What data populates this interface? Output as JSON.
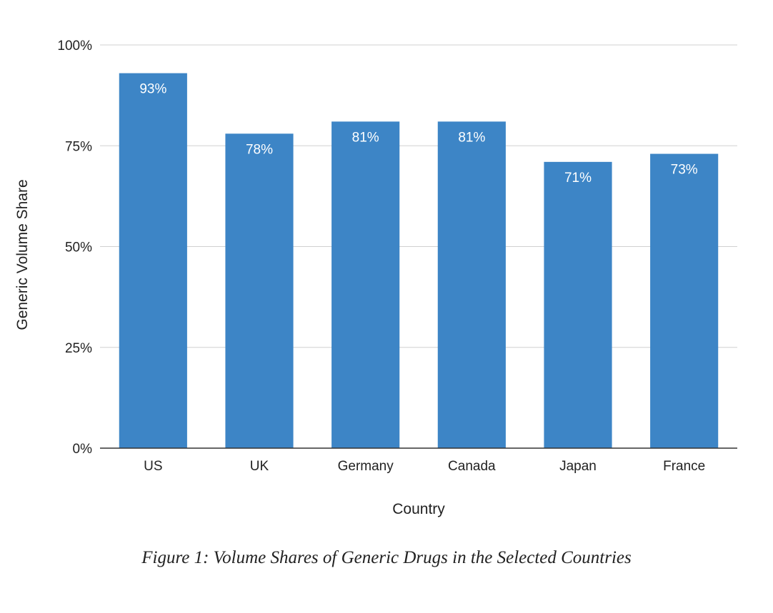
{
  "caption": "Figure 1: Volume Shares of Generic Drugs in the Selected Countries",
  "chart_data": {
    "type": "bar",
    "categories": [
      "US",
      "UK",
      "Germany",
      "Canada",
      "Japan",
      "France"
    ],
    "values": [
      93,
      78,
      81,
      81,
      71,
      73
    ],
    "value_labels": [
      "93%",
      "78%",
      "81%",
      "81%",
      "71%",
      "73%"
    ],
    "title": "",
    "xlabel": "Country",
    "ylabel": "Generic Volume Share",
    "ylim": [
      0,
      100
    ],
    "yticks": [
      0,
      25,
      50,
      75,
      100
    ],
    "ytick_labels": [
      "0%",
      "25%",
      "50%",
      "75%",
      "100%"
    ],
    "grid": true,
    "legend": "none",
    "bar_color": "#3d85c6",
    "label_color": "#ffffff"
  }
}
